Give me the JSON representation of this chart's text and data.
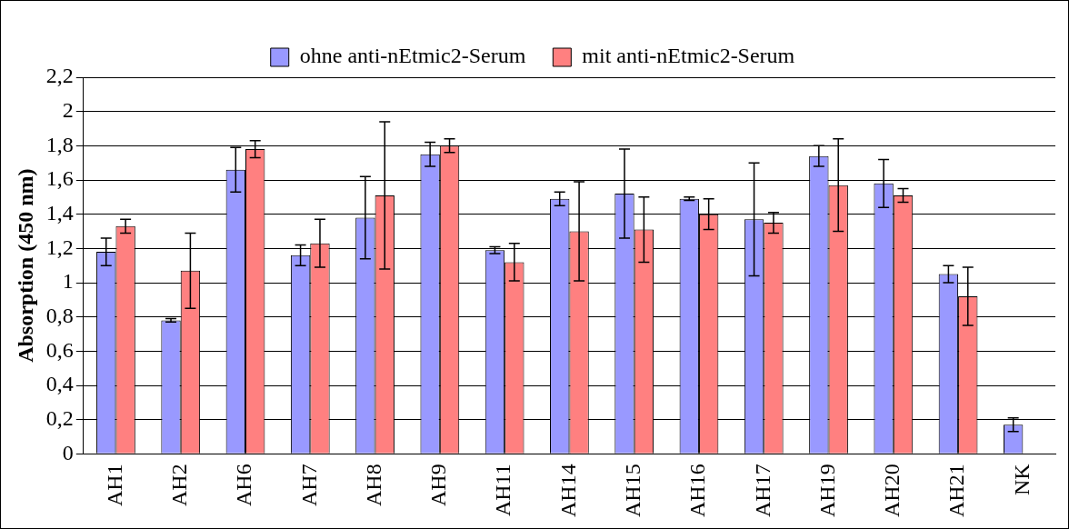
{
  "chart_data": {
    "type": "bar",
    "ylabel": "Absorption (450 nm)",
    "categories": [
      "AH1",
      "AH2",
      "AH6",
      "AH7",
      "AH8",
      "AH9",
      "AH11",
      "AH14",
      "AH15",
      "AH16",
      "AH17",
      "AH19",
      "AH20",
      "AH21",
      "NK"
    ],
    "series": [
      {
        "name": "ohne anti-nEtmic2-Serum",
        "color": "#9999ff",
        "values": [
          1.18,
          0.78,
          1.66,
          1.16,
          1.38,
          1.75,
          1.19,
          1.49,
          1.52,
          1.49,
          1.37,
          1.74,
          1.58,
          1.05,
          0.17
        ],
        "errors": [
          0.08,
          0.01,
          0.13,
          0.06,
          0.24,
          0.07,
          0.02,
          0.04,
          0.26,
          0.01,
          0.33,
          0.06,
          0.14,
          0.05,
          0.04
        ]
      },
      {
        "name": "mit anti-nEtmic2-Serum",
        "color": "#ff8080",
        "values": [
          1.33,
          1.07,
          1.78,
          1.23,
          1.51,
          1.8,
          1.12,
          1.3,
          1.31,
          1.4,
          1.35,
          1.57,
          1.51,
          0.92,
          null
        ],
        "errors": [
          0.04,
          0.22,
          0.05,
          0.14,
          0.43,
          0.04,
          0.11,
          0.29,
          0.19,
          0.09,
          0.06,
          0.27,
          0.04,
          0.17,
          null
        ]
      }
    ],
    "ylim": [
      0,
      2.2
    ],
    "yticks": [
      0,
      {
        "value": 0.2,
        "label": "0,2"
      },
      {
        "value": 0.4,
        "label": "0,4"
      },
      {
        "value": 0.6,
        "label": "0,6"
      },
      {
        "value": 0.8,
        "label": "0,8"
      },
      1,
      {
        "value": 1.2,
        "label": "1,2"
      },
      {
        "value": 1.4,
        "label": "1,4"
      },
      {
        "value": 1.6,
        "label": "1,6"
      },
      {
        "value": 1.8,
        "label": "1,8"
      },
      2,
      {
        "value": 2.2,
        "label": "2,2"
      }
    ],
    "grid": "y",
    "legend": "top"
  }
}
